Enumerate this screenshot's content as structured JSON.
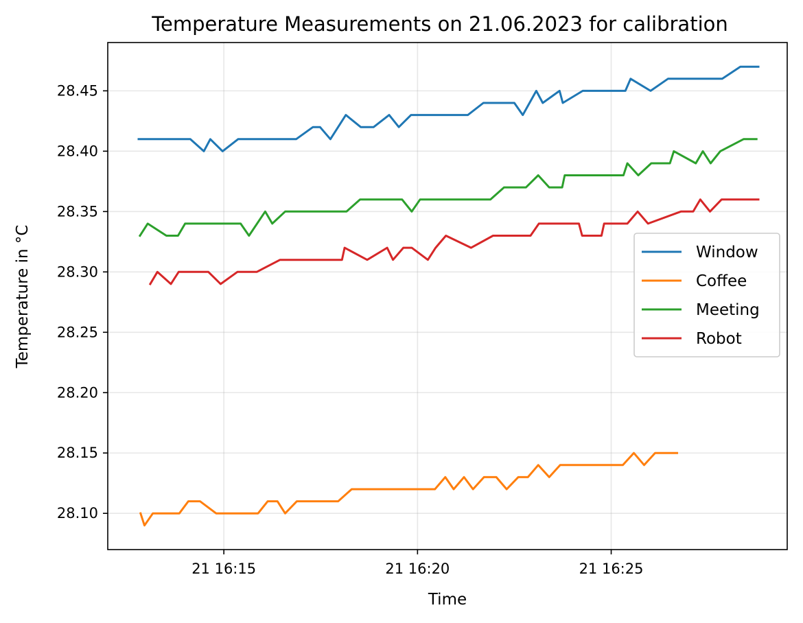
{
  "chart_data": {
    "type": "line",
    "title": "Temperature Measurements on 21.06.2023 for calibration",
    "xlabel": "Time",
    "ylabel": "Temperature in °C",
    "grid": true,
    "legend_position": "center-right",
    "x_unit": "time (HH:MM:SS) on 21 Jun 2023",
    "xlim": [
      "16:12:48",
      "16:28:48"
    ],
    "ylim": [
      28.07,
      28.49
    ],
    "x_ticks": [
      {
        "value": "16:15:00",
        "label": "21 16:15"
      },
      {
        "value": "16:20:00",
        "label": "21 16:20"
      },
      {
        "value": "16:25:00",
        "label": "21 16:25"
      }
    ],
    "y_ticks": [
      {
        "value": 28.1,
        "label": "28.10"
      },
      {
        "value": 28.15,
        "label": "28.15"
      },
      {
        "value": 28.2,
        "label": "28.20"
      },
      {
        "value": 28.25,
        "label": "28.25"
      },
      {
        "value": 28.3,
        "label": "28.30"
      },
      {
        "value": 28.35,
        "label": "28.35"
      },
      {
        "value": 28.4,
        "label": "28.40"
      },
      {
        "value": 28.45,
        "label": "28.45"
      }
    ],
    "series": [
      {
        "name": "Window",
        "color": "#1f77b4",
        "points": [
          [
            "16:12:48",
            28.41
          ],
          [
            "16:14:08",
            28.41
          ],
          [
            "16:14:29",
            28.4
          ],
          [
            "16:14:39",
            28.41
          ],
          [
            "16:14:58",
            28.4
          ],
          [
            "16:15:22",
            28.41
          ],
          [
            "16:16:52",
            28.41
          ],
          [
            "16:17:18",
            28.42
          ],
          [
            "16:17:29",
            28.42
          ],
          [
            "16:17:45",
            28.41
          ],
          [
            "16:18:09",
            28.43
          ],
          [
            "16:18:32",
            28.42
          ],
          [
            "16:18:52",
            28.42
          ],
          [
            "16:19:16",
            28.43
          ],
          [
            "16:19:31",
            28.42
          ],
          [
            "16:19:50",
            28.43
          ],
          [
            "16:21:18",
            28.43
          ],
          [
            "16:21:42",
            28.44
          ],
          [
            "16:22:30",
            28.44
          ],
          [
            "16:22:43",
            28.43
          ],
          [
            "16:23:04",
            28.45
          ],
          [
            "16:23:14",
            28.44
          ],
          [
            "16:23:40",
            28.45
          ],
          [
            "16:23:45",
            28.44
          ],
          [
            "16:24:16",
            28.45
          ],
          [
            "16:25:22",
            28.45
          ],
          [
            "16:25:30",
            28.46
          ],
          [
            "16:26:01",
            28.45
          ],
          [
            "16:26:28",
            28.46
          ],
          [
            "16:27:52",
            28.46
          ],
          [
            "16:28:20",
            28.47
          ],
          [
            "16:28:48",
            28.47
          ]
        ]
      },
      {
        "name": "Coffee",
        "color": "#ff7f0e",
        "points": [
          [
            "16:12:51",
            28.1
          ],
          [
            "16:12:57",
            28.09
          ],
          [
            "16:13:10",
            28.1
          ],
          [
            "16:13:51",
            28.1
          ],
          [
            "16:14:05",
            28.11
          ],
          [
            "16:14:23",
            28.11
          ],
          [
            "16:14:48",
            28.1
          ],
          [
            "16:15:53",
            28.1
          ],
          [
            "16:16:08",
            28.11
          ],
          [
            "16:16:23",
            28.11
          ],
          [
            "16:16:35",
            28.1
          ],
          [
            "16:16:53",
            28.11
          ],
          [
            "16:17:57",
            28.11
          ],
          [
            "16:18:18",
            28.12
          ],
          [
            "16:20:27",
            28.12
          ],
          [
            "16:20:43",
            28.13
          ],
          [
            "16:20:56",
            28.12
          ],
          [
            "16:21:12",
            28.13
          ],
          [
            "16:21:26",
            28.12
          ],
          [
            "16:21:43",
            28.13
          ],
          [
            "16:22:02",
            28.13
          ],
          [
            "16:22:18",
            28.12
          ],
          [
            "16:22:36",
            28.13
          ],
          [
            "16:22:51",
            28.13
          ],
          [
            "16:23:07",
            28.14
          ],
          [
            "16:23:24",
            28.13
          ],
          [
            "16:23:41",
            28.14
          ],
          [
            "16:25:18",
            28.14
          ],
          [
            "16:25:35",
            28.15
          ],
          [
            "16:25:51",
            28.14
          ],
          [
            "16:26:08",
            28.15
          ],
          [
            "16:26:42",
            28.15
          ]
        ]
      },
      {
        "name": "Meeting",
        "color": "#2ca02c",
        "points": [
          [
            "16:12:50",
            28.33
          ],
          [
            "16:13:02",
            28.34
          ],
          [
            "16:13:31",
            28.33
          ],
          [
            "16:13:49",
            28.33
          ],
          [
            "16:14:00",
            28.34
          ],
          [
            "16:15:26",
            28.34
          ],
          [
            "16:15:39",
            28.33
          ],
          [
            "16:16:04",
            28.35
          ],
          [
            "16:16:15",
            28.34
          ],
          [
            "16:16:35",
            28.35
          ],
          [
            "16:18:10",
            28.35
          ],
          [
            "16:18:31",
            28.36
          ],
          [
            "16:19:36",
            28.36
          ],
          [
            "16:19:51",
            28.35
          ],
          [
            "16:20:04",
            28.36
          ],
          [
            "16:21:53",
            28.36
          ],
          [
            "16:22:14",
            28.37
          ],
          [
            "16:22:48",
            28.37
          ],
          [
            "16:23:07",
            28.38
          ],
          [
            "16:23:24",
            28.37
          ],
          [
            "16:23:44",
            28.37
          ],
          [
            "16:23:48",
            28.38
          ],
          [
            "16:25:19",
            28.38
          ],
          [
            "16:25:25",
            28.39
          ],
          [
            "16:25:42",
            28.38
          ],
          [
            "16:26:02",
            28.39
          ],
          [
            "16:26:31",
            28.39
          ],
          [
            "16:26:37",
            28.4
          ],
          [
            "16:27:11",
            28.39
          ],
          [
            "16:27:22",
            28.4
          ],
          [
            "16:27:34",
            28.39
          ],
          [
            "16:27:49",
            28.4
          ],
          [
            "16:28:25",
            28.41
          ],
          [
            "16:28:45",
            28.41
          ]
        ]
      },
      {
        "name": "Robot",
        "color": "#d62728",
        "points": [
          [
            "16:13:06",
            28.29
          ],
          [
            "16:13:17",
            28.3
          ],
          [
            "16:13:38",
            28.29
          ],
          [
            "16:13:50",
            28.3
          ],
          [
            "16:14:36",
            28.3
          ],
          [
            "16:14:55",
            28.29
          ],
          [
            "16:15:21",
            28.3
          ],
          [
            "16:15:51",
            28.3
          ],
          [
            "16:16:27",
            28.31
          ],
          [
            "16:18:03",
            28.31
          ],
          [
            "16:18:07",
            28.32
          ],
          [
            "16:18:42",
            28.31
          ],
          [
            "16:19:13",
            28.32
          ],
          [
            "16:19:22",
            28.31
          ],
          [
            "16:19:38",
            28.32
          ],
          [
            "16:19:51",
            28.32
          ],
          [
            "16:20:16",
            28.31
          ],
          [
            "16:20:28",
            28.32
          ],
          [
            "16:20:44",
            28.33
          ],
          [
            "16:21:23",
            28.32
          ],
          [
            "16:21:57",
            28.33
          ],
          [
            "16:22:55",
            28.33
          ],
          [
            "16:23:08",
            28.34
          ],
          [
            "16:24:10",
            28.34
          ],
          [
            "16:24:15",
            28.33
          ],
          [
            "16:24:45",
            28.33
          ],
          [
            "16:24:49",
            28.34
          ],
          [
            "16:25:25",
            28.34
          ],
          [
            "16:25:41",
            28.35
          ],
          [
            "16:25:57",
            28.34
          ],
          [
            "16:26:48",
            28.35
          ],
          [
            "16:27:07",
            28.35
          ],
          [
            "16:27:18",
            28.36
          ],
          [
            "16:27:33",
            28.35
          ],
          [
            "16:27:51",
            28.36
          ],
          [
            "16:28:48",
            28.36
          ]
        ]
      }
    ]
  }
}
